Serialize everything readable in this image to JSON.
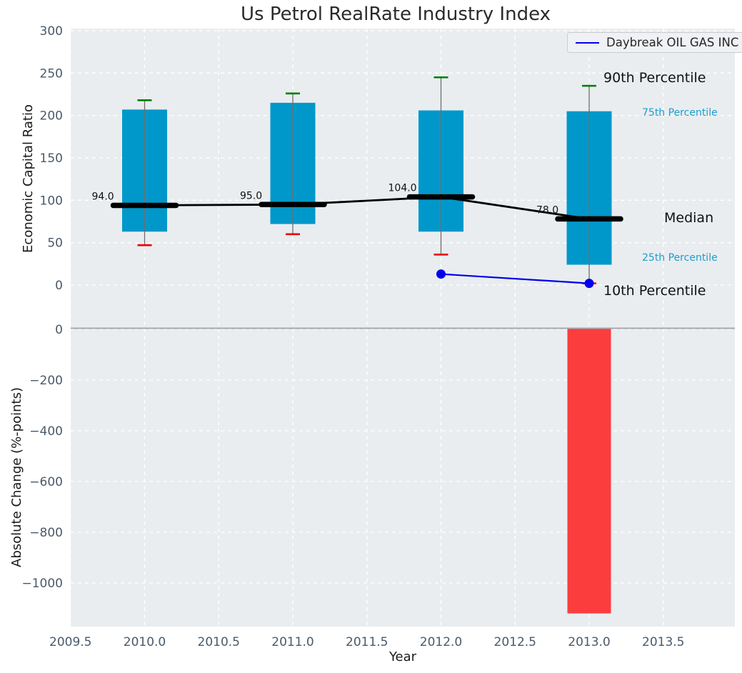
{
  "title": "Us Petrol RealRate Industry Index",
  "legend": {
    "label": "Daybreak OIL GAS INC"
  },
  "axes": {
    "top_ylabel": "Economic Capital Ratio",
    "bottom_ylabel": "Absolute Change (%-points)",
    "xlabel": "Year"
  },
  "annotations": {
    "p90": "90th Percentile",
    "p75": "75th Percentile",
    "median": "Median",
    "p25": "25th Percentile",
    "p10": "10th Percentile"
  },
  "colors": {
    "box_fill": "#0098ca",
    "bar_fill": "#fb3d3d",
    "series_line": "#0000ee",
    "whisker_cap_top": "#007d00",
    "whisker_cap_bottom": "#f20000",
    "whisker_line": "#6e6e6e",
    "median_line": "#000000",
    "small_annotation": "#1b9dce",
    "tick_label": "#4a5a6a",
    "median_label": "#111111",
    "plot_background": "#e9edf0",
    "grid": "#ffffff",
    "divider": "#a3a8ac"
  },
  "chart_data": [
    {
      "type": "boxplot",
      "title": "Us Petrol RealRate Industry Index",
      "ylabel": "Economic Capital Ratio",
      "xlabel": "Year",
      "grid": true,
      "legend_position": "upper right",
      "x": [
        2010,
        2011,
        2012,
        2013
      ],
      "xticks": [
        "2009.5",
        "2010.0",
        "2010.5",
        "2011.0",
        "2011.5",
        "2012.0",
        "2012.5",
        "2013.0",
        "2013.5"
      ],
      "xtick_values": [
        2009.5,
        2010,
        2010.5,
        2011,
        2011.5,
        2012,
        2012.5,
        2013,
        2013.5
      ],
      "yticks": [
        "0",
        "50",
        "100",
        "150",
        "200",
        "250",
        "300"
      ],
      "ytick_values": [
        0,
        50,
        100,
        150,
        200,
        250,
        300
      ],
      "xlim": [
        2009.5,
        2013.97
      ],
      "ylim": [
        -50,
        305
      ],
      "p90": [
        218,
        226,
        245,
        235
      ],
      "p75": [
        207,
        215,
        206,
        205
      ],
      "median": [
        94,
        95,
        104,
        78
      ],
      "p25": [
        63,
        72,
        63,
        24
      ],
      "p10": [
        47,
        60,
        36,
        2
      ],
      "median_labels": [
        "94.0",
        "95.0",
        "104.0",
        "78.0"
      ],
      "series": [
        {
          "name": "Daybreak OIL GAS INC",
          "x": [
            2012,
            2013
          ],
          "y": [
            13,
            2
          ]
        }
      ]
    },
    {
      "type": "bar",
      "ylabel": "Absolute Change (%-points)",
      "x": [
        2013
      ],
      "values": [
        -1120
      ],
      "yticks": [
        "0",
        "−200",
        "−400",
        "−600",
        "−800",
        "−1000"
      ],
      "ytick_values": [
        0,
        -200,
        -400,
        -600,
        -800,
        -1000
      ],
      "ylim": [
        -1172,
        6
      ],
      "grid": true
    }
  ]
}
